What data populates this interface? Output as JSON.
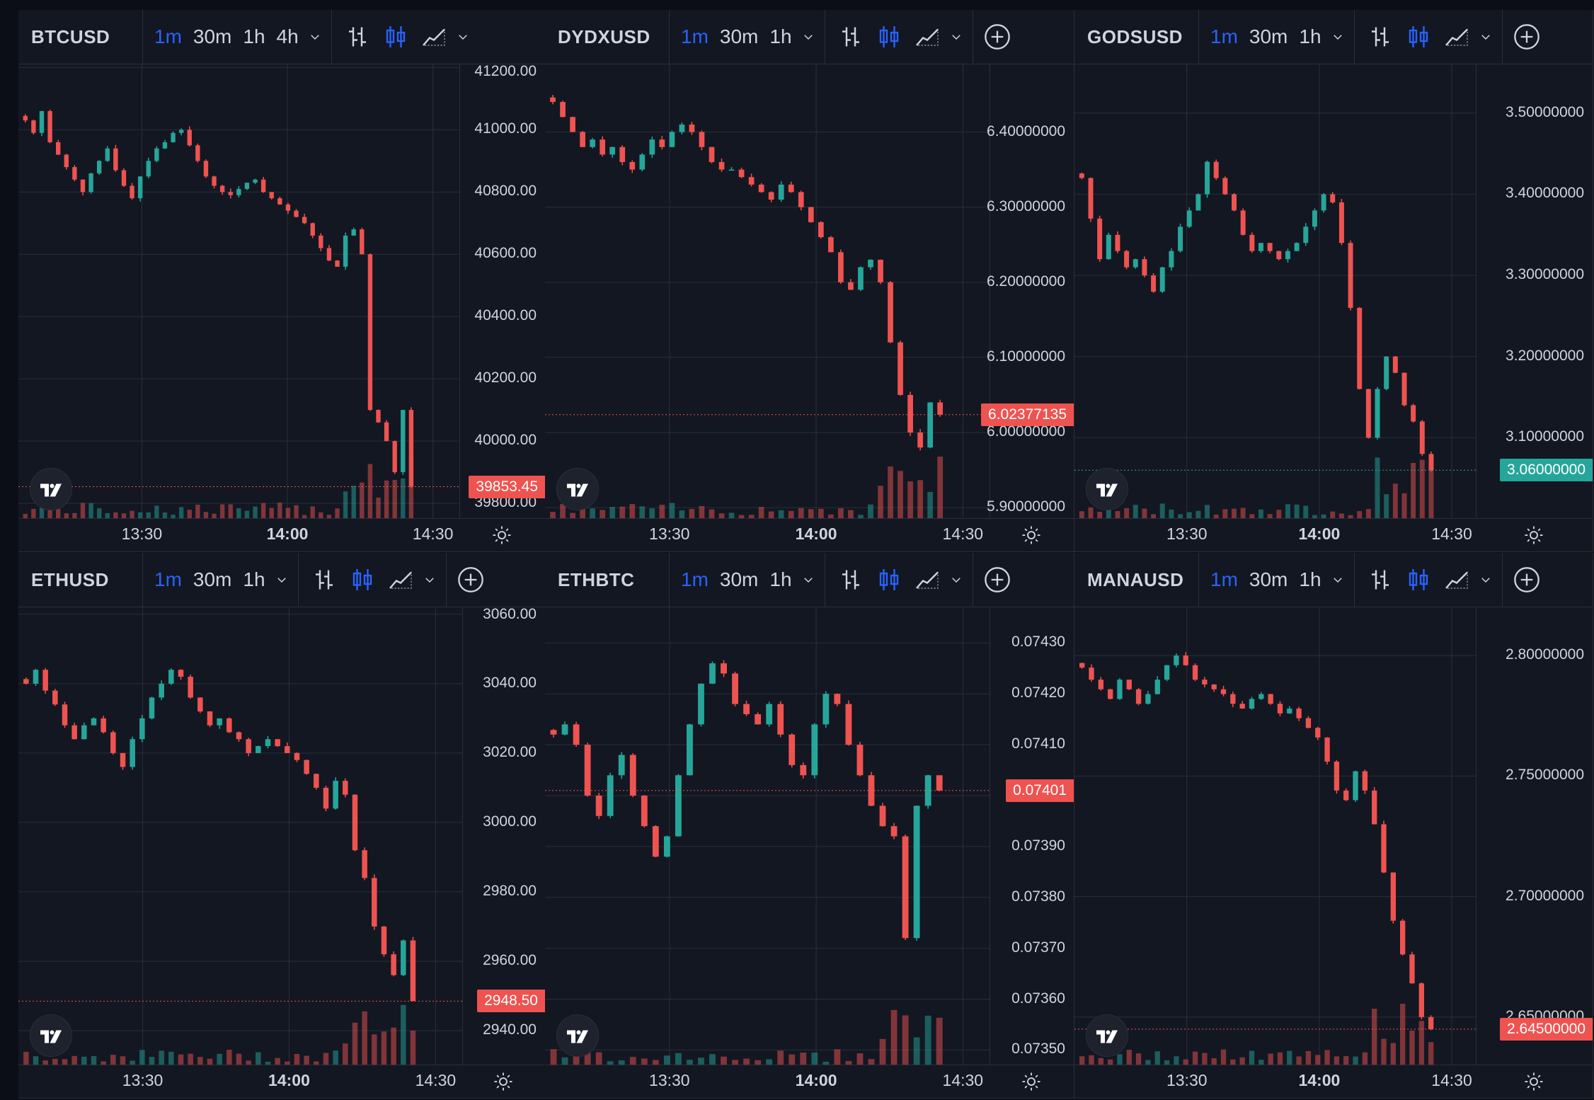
{
  "colors": {
    "up": "#26a69a",
    "down": "#ef5350",
    "accent": "#2962ff",
    "bg": "#131722",
    "grid": "#2a2e39"
  },
  "panels": [
    {
      "symbol": "BTCUSD",
      "timeframes": [
        "1m",
        "30m",
        "1h",
        "4h"
      ],
      "active_timeframe": "1m",
      "has_add_button": false,
      "axis_labels": [
        "41200.00",
        "41000.00",
        "40800.00",
        "40600.00",
        "40400.00",
        "40200.00",
        "40000.00",
        "39800.00"
      ],
      "axis_values": [
        41200,
        41000,
        40800,
        40600,
        40400,
        40200,
        40000,
        39800
      ],
      "y_range": [
        39750,
        41210
      ],
      "last_price": 39853.45,
      "last_price_label": "39853.45",
      "last_direction": "down",
      "time_labels": [
        "13:30",
        "14:00",
        "14:30"
      ],
      "time_bold": [
        false,
        true,
        false
      ],
      "series": [
        41030,
        40990,
        41060,
        40960,
        40920,
        40880,
        40840,
        40800,
        40860,
        40900,
        40940,
        40870,
        40820,
        40780,
        40850,
        40900,
        40940,
        40960,
        40990,
        41000,
        40950,
        40900,
        40850,
        40820,
        40800,
        40790,
        40810,
        40830,
        40840,
        40800,
        40780,
        40760,
        40740,
        40720,
        40700,
        40660,
        40620,
        40580,
        40560,
        40660,
        40680,
        40600,
        40100,
        40060,
        40000,
        39900,
        40100,
        39853.45
      ]
    },
    {
      "symbol": "DYDXUSD",
      "timeframes": [
        "1m",
        "30m",
        "1h"
      ],
      "active_timeframe": "1m",
      "has_add_button": true,
      "axis_labels": [
        "6.40000000",
        "6.30000000",
        "6.20000000",
        "6.10000000",
        "6.00000000",
        "5.90000000"
      ],
      "axis_values": [
        6.4,
        6.3,
        6.2,
        6.1,
        6.0,
        5.9
      ],
      "y_range": [
        5.885,
        6.49
      ],
      "last_price": 6.02377135,
      "last_price_label": "6.02377135",
      "last_direction": "down",
      "time_labels": [
        "13:30",
        "14:00",
        "14:30"
      ],
      "time_bold": [
        false,
        true,
        false
      ],
      "series": [
        6.44,
        6.42,
        6.4,
        6.38,
        6.39,
        6.37,
        6.38,
        6.36,
        6.35,
        6.37,
        6.39,
        6.38,
        6.4,
        6.41,
        6.4,
        6.38,
        6.36,
        6.35,
        6.35,
        6.34,
        6.33,
        6.32,
        6.31,
        6.33,
        6.32,
        6.3,
        6.28,
        6.26,
        6.24,
        6.2,
        6.19,
        6.22,
        6.23,
        6.2,
        6.12,
        6.05,
        6.0,
        5.98,
        6.04,
        6.02377135
      ]
    },
    {
      "symbol": "GODSUSD",
      "timeframes": [
        "1m",
        "30m",
        "1h"
      ],
      "active_timeframe": "1m",
      "has_add_button": true,
      "axis_labels": [
        "3.50000000",
        "3.40000000",
        "3.30000000",
        "3.20000000",
        "3.10000000"
      ],
      "axis_values": [
        3.5,
        3.4,
        3.3,
        3.2,
        3.1
      ],
      "y_range": [
        3.0,
        3.56
      ],
      "last_price": 3.06,
      "last_price_label": "3.06000000",
      "last_direction": "up",
      "time_labels": [
        "13:30",
        "14:00",
        "14:30"
      ],
      "time_bold": [
        false,
        true,
        false
      ],
      "series": [
        3.42,
        3.37,
        3.32,
        3.35,
        3.33,
        3.31,
        3.32,
        3.3,
        3.28,
        3.31,
        3.33,
        3.36,
        3.38,
        3.4,
        3.44,
        3.42,
        3.4,
        3.38,
        3.35,
        3.33,
        3.34,
        3.33,
        3.32,
        3.33,
        3.34,
        3.36,
        3.38,
        3.4,
        3.39,
        3.34,
        3.26,
        3.16,
        3.1,
        3.16,
        3.2,
        3.18,
        3.14,
        3.12,
        3.08,
        3.06
      ]
    },
    {
      "symbol": "ETHUSD",
      "timeframes": [
        "1m",
        "30m",
        "1h"
      ],
      "active_timeframe": "1m",
      "has_add_button": true,
      "axis_labels": [
        "3060.00",
        "3040.00",
        "3020.00",
        "3000.00",
        "2980.00",
        "2960.00",
        "2940.00"
      ],
      "axis_values": [
        3060,
        3040,
        3020,
        3000,
        2980,
        2960,
        2940
      ],
      "y_range": [
        2930,
        3062
      ],
      "last_price": 2948.5,
      "last_price_label": "2948.50",
      "last_direction": "down",
      "time_labels": [
        "13:30",
        "14:00",
        "14:30"
      ],
      "time_bold": [
        false,
        true,
        false
      ],
      "series": [
        3040,
        3044,
        3038,
        3034,
        3028,
        3024,
        3028,
        3030,
        3026,
        3020,
        3016,
        3024,
        3030,
        3036,
        3040,
        3044,
        3042,
        3036,
        3032,
        3028,
        3030,
        3026,
        3024,
        3020,
        3022,
        3024,
        3022,
        3020,
        3018,
        3014,
        3010,
        3004,
        3012,
        3008,
        2992,
        2984,
        2970,
        2962,
        2956,
        2966,
        2948.5
      ]
    },
    {
      "symbol": "ETHBTC",
      "timeframes": [
        "1m",
        "30m",
        "1h"
      ],
      "active_timeframe": "1m",
      "has_add_button": true,
      "axis_labels": [
        "0.07430",
        "0.07420",
        "0.07410",
        "0.07400",
        "0.07390",
        "0.07380",
        "0.07370",
        "0.07360",
        "0.07350"
      ],
      "axis_values": [
        0.0743,
        0.0742,
        0.0741,
        0.074,
        0.0739,
        0.0738,
        0.0737,
        0.0736,
        0.0735
      ],
      "y_range": [
        0.07347,
        0.07437
      ],
      "last_price": 0.07401,
      "last_price_label": "0.07401",
      "last_direction": "down",
      "time_labels": [
        "13:30",
        "14:00",
        "14:30"
      ],
      "time_bold": [
        false,
        true,
        false
      ],
      "series": [
        0.07412,
        0.07414,
        0.0741,
        0.074,
        0.07396,
        0.07404,
        0.07408,
        0.074,
        0.07394,
        0.07388,
        0.07392,
        0.07404,
        0.07414,
        0.07422,
        0.07426,
        0.07424,
        0.07418,
        0.07416,
        0.07414,
        0.07418,
        0.07412,
        0.07406,
        0.07404,
        0.07414,
        0.0742,
        0.07418,
        0.0741,
        0.07404,
        0.07398,
        0.07394,
        0.07392,
        0.07372,
        0.07398,
        0.07404,
        0.07401
      ]
    },
    {
      "symbol": "MANAUSD",
      "timeframes": [
        "1m",
        "30m",
        "1h"
      ],
      "active_timeframe": "1m",
      "has_add_button": true,
      "axis_labels": [
        "2.80000000",
        "2.75000000",
        "2.70000000",
        "2.65000000"
      ],
      "axis_values": [
        2.8,
        2.75,
        2.7,
        2.65
      ],
      "y_range": [
        2.63,
        2.82
      ],
      "last_price": 2.645,
      "last_price_label": "2.64500000",
      "last_direction": "down",
      "time_labels": [
        "13:30",
        "14:00",
        "14:30"
      ],
      "time_bold": [
        false,
        true,
        false
      ],
      "series": [
        2.795,
        2.79,
        2.786,
        2.782,
        2.79,
        2.786,
        2.78,
        2.784,
        2.79,
        2.796,
        2.8,
        2.796,
        2.79,
        2.788,
        2.786,
        2.784,
        2.78,
        2.778,
        2.782,
        2.784,
        2.78,
        2.776,
        2.778,
        2.774,
        2.77,
        2.766,
        2.756,
        2.744,
        2.74,
        2.752,
        2.744,
        2.73,
        2.71,
        2.69,
        2.676,
        2.664,
        2.65,
        2.645
      ]
    }
  ]
}
